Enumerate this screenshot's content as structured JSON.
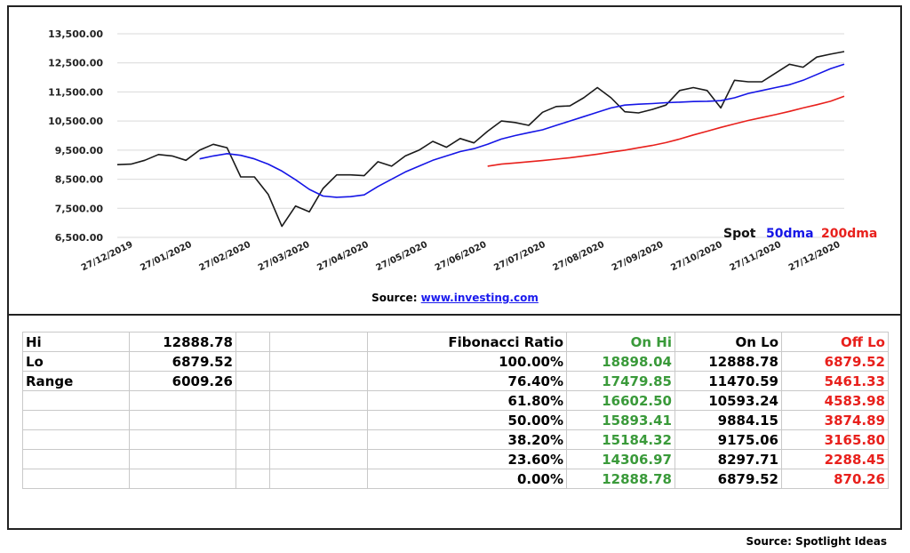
{
  "chart_data": {
    "type": "line",
    "ylim": [
      6500,
      13500
    ],
    "yticks": [
      "13,500.00",
      "12,500.00",
      "11,500.00",
      "10,500.00",
      "9,500.00",
      "8,500.00",
      "7,500.00",
      "6,500.00"
    ],
    "ytick_values": [
      13500,
      12500,
      11500,
      10500,
      9500,
      8500,
      7500,
      6500
    ],
    "xticks": [
      "27/12/2019",
      "27/01/2020",
      "27/02/2020",
      "27/03/2020",
      "27/04/2020",
      "27/05/2020",
      "27/06/2020",
      "27/07/2020",
      "27/08/2020",
      "27/09/2020",
      "27/10/2020",
      "27/11/2020",
      "27/12/2020"
    ],
    "grid": true,
    "legend_position": "bottom-right",
    "series": [
      {
        "name": "Spot",
        "color": "#1a1a1a",
        "values": [
          9000,
          9020,
          9150,
          9350,
          9300,
          9150,
          9500,
          9700,
          9580,
          8580,
          8580,
          7980,
          6880,
          7580,
          7380,
          8180,
          8650,
          8650,
          8620,
          9100,
          8950,
          9300,
          9500,
          9800,
          9600,
          9900,
          9750,
          10150,
          10500,
          10450,
          10350,
          10800,
          11000,
          11020,
          11300,
          11650,
          11300,
          10820,
          10780,
          10900,
          11050,
          11550,
          11650,
          11550,
          10950,
          11900,
          11850,
          11850,
          12150,
          12450,
          12350,
          12700,
          12800,
          12888
        ]
      },
      {
        "name": "50dma",
        "color": "#1515e6",
        "values": [
          null,
          null,
          null,
          null,
          null,
          null,
          9200,
          9300,
          9380,
          9320,
          9200,
          9020,
          8780,
          8480,
          8150,
          7920,
          7880,
          7900,
          7960,
          8250,
          8500,
          8750,
          8950,
          9150,
          9300,
          9450,
          9550,
          9700,
          9880,
          10000,
          10100,
          10200,
          10350,
          10500,
          10650,
          10800,
          10950,
          11050,
          11080,
          11100,
          11130,
          11150,
          11170,
          11180,
          11200,
          11300,
          11450,
          11550,
          11650,
          11750,
          11900,
          12100,
          12300,
          12450
        ]
      },
      {
        "name": "200dma",
        "color": "#e8201c",
        "values": [
          null,
          null,
          null,
          null,
          null,
          null,
          null,
          null,
          null,
          null,
          null,
          null,
          null,
          null,
          null,
          null,
          null,
          null,
          null,
          null,
          null,
          null,
          null,
          null,
          null,
          null,
          null,
          8950,
          9020,
          9060,
          9100,
          9140,
          9190,
          9240,
          9300,
          9360,
          9430,
          9500,
          9580,
          9660,
          9760,
          9880,
          10020,
          10150,
          10280,
          10400,
          10520,
          10620,
          10720,
          10830,
          10950,
          11060,
          11180,
          11350
        ]
      }
    ]
  },
  "legend": {
    "spot": "Spot",
    "dma50": "50dma",
    "dma200": "200dma"
  },
  "source_line": {
    "label": "Source: ",
    "link_text": "www.investing.com"
  },
  "summary": [
    {
      "label": "Hi",
      "value": "12888.78"
    },
    {
      "label": "Lo",
      "value": "6879.52"
    },
    {
      "label": "Range",
      "value": "6009.26"
    }
  ],
  "fib_table": {
    "headers": {
      "ratio": "Fibonacci  Ratio",
      "on_hi": "On Hi",
      "on_lo": "On Lo",
      "off_lo": "Off Lo"
    },
    "rows": [
      {
        "ratio": "100.00%",
        "on_hi": "18898.04",
        "on_lo": "12888.78",
        "off_lo": "6879.52"
      },
      {
        "ratio": "76.40%",
        "on_hi": "17479.85",
        "on_lo": "11470.59",
        "off_lo": "5461.33"
      },
      {
        "ratio": "61.80%",
        "on_hi": "16602.50",
        "on_lo": "10593.24",
        "off_lo": "4583.98"
      },
      {
        "ratio": "50.00%",
        "on_hi": "15893.41",
        "on_lo": "9884.15",
        "off_lo": "3874.89"
      },
      {
        "ratio": "38.20%",
        "on_hi": "15184.32",
        "on_lo": "9175.06",
        "off_lo": "3165.80"
      },
      {
        "ratio": "23.60%",
        "on_hi": "14306.97",
        "on_lo": "8297.71",
        "off_lo": "2288.45"
      },
      {
        "ratio": "0.00%",
        "on_hi": "12888.78",
        "on_lo": "6879.52",
        "off_lo": "870.26"
      }
    ]
  },
  "footer": {
    "source": "Source: Spotlight Ideas"
  }
}
